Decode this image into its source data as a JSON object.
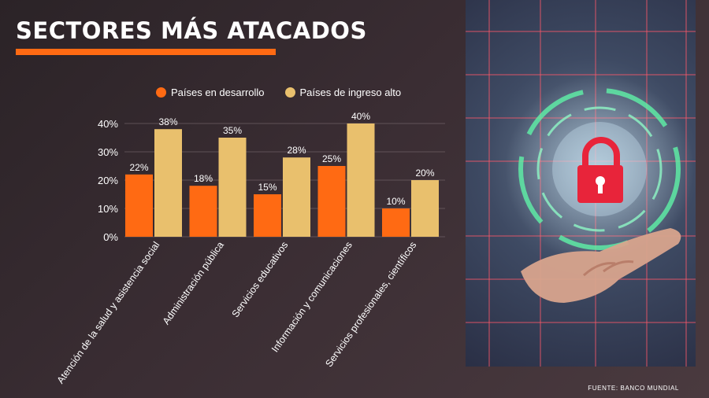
{
  "header": {
    "title": "SECTORES MÁS ATACADOS"
  },
  "footer": {
    "source": "FUENTE: BANCO MUNDIAL"
  },
  "colors": {
    "accent": "#ff6a13",
    "series1": "#ff6a13",
    "series2": "#e9c06d"
  },
  "chart_data": {
    "type": "bar",
    "categories": [
      "Atención de la salud y asistencia social",
      "Administración pública",
      "Servicios educativos",
      "Información y comunicaciones",
      "Servicios profesionales, científicos"
    ],
    "series": [
      {
        "name": "Países en desarrollo",
        "values": [
          22,
          18,
          15,
          25,
          10
        ],
        "labels": [
          "22%",
          "18%",
          "15%",
          "25%",
          "10%"
        ],
        "color": "#ff6a13"
      },
      {
        "name": "Países de ingreso alto",
        "values": [
          38,
          35,
          28,
          40,
          20
        ],
        "labels": [
          "38%",
          "35%",
          "28%",
          "40%",
          "20%"
        ],
        "color": "#e9c06d"
      }
    ],
    "y_ticks": [
      "0%",
      "10%",
      "20%",
      "30%",
      "40%"
    ],
    "ylim": [
      0,
      40
    ],
    "grid": true,
    "legend": "top"
  },
  "photo": {
    "icon": "padlock-icon"
  }
}
